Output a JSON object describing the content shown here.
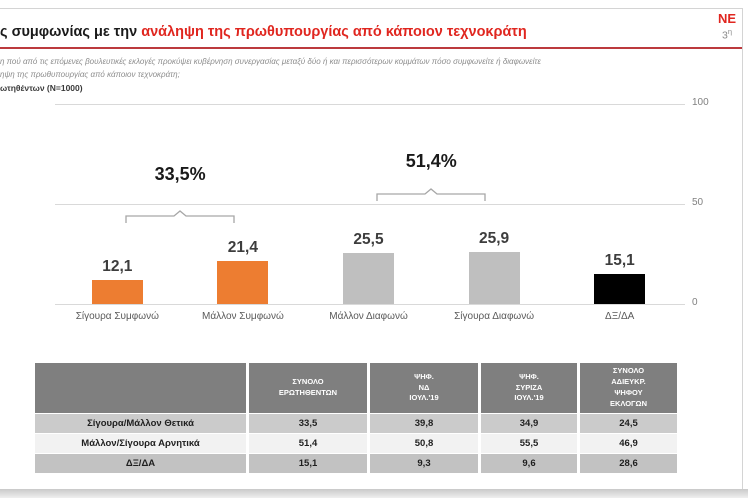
{
  "header": {
    "title_prefix": "ς συμφωνίας με την ",
    "title_highlight": "ανάληψη της πρωθυπουργίας από κάποιον τεχνοκράτη",
    "logo_text": "NE",
    "edition_number": "3",
    "edition_suffix": "η"
  },
  "subtitle": {
    "line1": "η πού από τις επόμενες βουλευτικές εκλογές προκύψει κυβέρνηση συνεργασίας μεταξύ δύο ή και περισσότερων κομμάτων πόσο συμφωνείτε ή διαφωνείτε",
    "line2": "ηψη της πρωθυπουργίας από κάποιον τεχνοκράτη;",
    "line3": "ωτηθέντων (N=1000)"
  },
  "chart_data": {
    "type": "bar",
    "categories": [
      "Σίγουρα Συμφωνώ",
      "Μάλλον Συμφωνώ",
      "Μάλλον Διαφωνώ",
      "Σίγουρα Διαφωνώ",
      "ΔΞ/ΔΑ"
    ],
    "values": [
      12.1,
      21.4,
      25.5,
      25.9,
      15.1
    ],
    "value_labels": [
      "12,1",
      "21,4",
      "25,5",
      "25,9",
      "15,1"
    ],
    "bar_colors": [
      "#ED7D31",
      "#ED7D31",
      "#BFBFBF",
      "#BFBFBF",
      "#000000"
    ],
    "ylim": [
      0,
      100
    ],
    "yticks": [
      {
        "value": 0,
        "label": "0"
      },
      {
        "value": 50,
        "label": "50"
      },
      {
        "value": 100,
        "label": "100"
      }
    ],
    "grid": true,
    "legend": "none",
    "annotations": [
      {
        "label": "33,5%",
        "value": 33.5,
        "bars": [
          0,
          1
        ]
      },
      {
        "label": "51,4%",
        "value": 51.4,
        "bars": [
          2,
          3
        ]
      }
    ]
  },
  "table": {
    "columns": [
      "",
      "ΣΥΝΟΛΟ\nΕΡΩΤΗΘΕΝΤΩΝ",
      "ΨΗΦ.\nΝΔ\nΙΟΥΛ.'19",
      "ΨΗΦ.\nΣΥΡΙΖΑ\nΙΟΥΛ.'19",
      "ΣΥΝΟΛΟ\nΑΔΙΕΥΚΡ.\nΨΗΦΟΥ\nΕΚΛΟΓΩΝ"
    ],
    "rows": [
      {
        "label": "Σίγουρα/Μάλλον Θετικά",
        "values": [
          "33,5",
          "39,8",
          "34,9",
          "24,5"
        ]
      },
      {
        "label": "Μάλλον/Σίγουρα Αρνητικά",
        "values": [
          "51,4",
          "50,8",
          "55,5",
          "46,9"
        ]
      },
      {
        "label": "ΔΞ/ΔΑ",
        "values": [
          "15,1",
          "9,3",
          "9,6",
          "28,6"
        ]
      }
    ],
    "row_backgrounds": [
      "#cbcbcb",
      "#f2f2f2",
      "#c2c2c2"
    ]
  },
  "colors": {
    "accent_orange": "#ED7D31",
    "bar_gray": "#BFBFBF",
    "bar_black": "#000000",
    "title_red": "#E0261F",
    "divider_red": "#BC3A3E",
    "table_header_gray": "#7F7F7F",
    "gridline_gray": "#D9D9D9"
  }
}
